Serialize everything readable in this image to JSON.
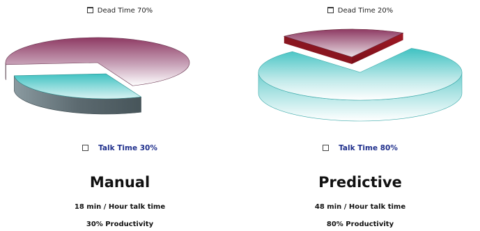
{
  "chart_data": [
    {
      "type": "pie",
      "title": "Manual",
      "categories": [
        "Dead Time",
        "Talk Time"
      ],
      "values": [
        70,
        30
      ],
      "legend": [
        {
          "label": "Dead Time 70%",
          "placement": "top"
        },
        {
          "label": "Talk Time 30%",
          "placement": "bottom"
        }
      ],
      "colors": {
        "dead_time": "#8e3a63",
        "talk_time": "#3fc2c2"
      },
      "notes": [
        "18 min / Hour talk time",
        "30% Productivity"
      ]
    },
    {
      "type": "pie",
      "title": "Predictive",
      "categories": [
        "Dead Time",
        "Talk Time"
      ],
      "values": [
        20,
        80
      ],
      "legend": [
        {
          "label": "Dead Time 20%",
          "placement": "top"
        },
        {
          "label": "Talk Time 80%",
          "placement": "bottom"
        }
      ],
      "colors": {
        "dead_time": "#9a1420",
        "talk_time": "#3fc2c2"
      },
      "notes": [
        "48 min / Hour talk time",
        "80% Productivity"
      ]
    }
  ]
}
